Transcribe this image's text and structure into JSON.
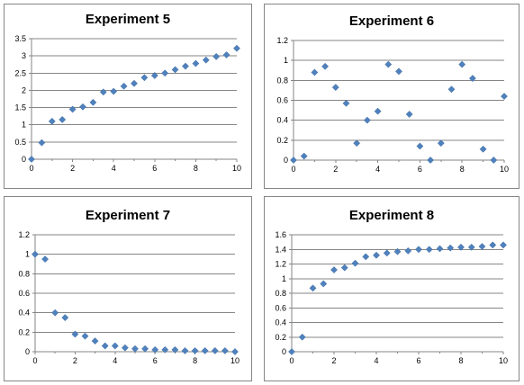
{
  "chart_data": [
    {
      "type": "scatter",
      "title": "Experiment 5",
      "marker": "diamond",
      "color": "#4f81bd",
      "grid": "horizontal",
      "xlim": [
        0,
        10
      ],
      "ylim": [
        0,
        3.5
      ],
      "x_ticks": [
        "0",
        "2",
        "4",
        "6",
        "8",
        "10"
      ],
      "y_ticks": [
        "0",
        "0.5",
        "1",
        "1.5",
        "2",
        "2.5",
        "3",
        "3.5"
      ],
      "points": [
        [
          0,
          0
        ],
        [
          0.5,
          0.48
        ],
        [
          1,
          1.1
        ],
        [
          1.5,
          1.15
        ],
        [
          2,
          1.45
        ],
        [
          2.5,
          1.52
        ],
        [
          3,
          1.65
        ],
        [
          3.5,
          1.95
        ],
        [
          4,
          1.97
        ],
        [
          4.5,
          2.12
        ],
        [
          5,
          2.2
        ],
        [
          5.5,
          2.37
        ],
        [
          6,
          2.43
        ],
        [
          6.5,
          2.5
        ],
        [
          7,
          2.6
        ],
        [
          7.5,
          2.7
        ],
        [
          8,
          2.78
        ],
        [
          8.5,
          2.88
        ],
        [
          9,
          2.98
        ],
        [
          9.5,
          3.03
        ],
        [
          10,
          3.22
        ]
      ]
    },
    {
      "type": "scatter",
      "title": "Experiment 6",
      "marker": "diamond",
      "color": "#4f81bd",
      "grid": "horizontal",
      "xlim": [
        0,
        10
      ],
      "ylim": [
        0,
        1.2
      ],
      "x_ticks": [
        "0",
        "2",
        "4",
        "6",
        "8",
        "10"
      ],
      "y_ticks": [
        "0",
        "0.2",
        "0.4",
        "0.6",
        "0.8",
        "1",
        "1.2"
      ],
      "points": [
        [
          0,
          0
        ],
        [
          0.5,
          0.04
        ],
        [
          1,
          0.88
        ],
        [
          1.5,
          0.94
        ],
        [
          2,
          0.73
        ],
        [
          2.5,
          0.57
        ],
        [
          3,
          0.17
        ],
        [
          3.5,
          0.4
        ],
        [
          4,
          0.49
        ],
        [
          4.5,
          0.96
        ],
        [
          5,
          0.89
        ],
        [
          5.5,
          0.46
        ],
        [
          6,
          0.14
        ],
        [
          6.5,
          0
        ],
        [
          7,
          0.17
        ],
        [
          7.5,
          0.71
        ],
        [
          8,
          0.96
        ],
        [
          8.5,
          0.82
        ],
        [
          9,
          0.11
        ],
        [
          9.5,
          0
        ],
        [
          10,
          0.64
        ]
      ]
    },
    {
      "type": "scatter",
      "title": "Experiment 7",
      "marker": "diamond",
      "color": "#4f81bd",
      "grid": "horizontal",
      "xlim": [
        0,
        10
      ],
      "ylim": [
        0,
        1.2
      ],
      "x_ticks": [
        "0",
        "2",
        "4",
        "6",
        "8",
        "10"
      ],
      "y_ticks": [
        "0",
        "0.2",
        "0.4",
        "0.6",
        "0.8",
        "1",
        "1.2"
      ],
      "points": [
        [
          0,
          1.0
        ],
        [
          0.5,
          0.95
        ],
        [
          1,
          0.4
        ],
        [
          1.5,
          0.35
        ],
        [
          2,
          0.18
        ],
        [
          2.5,
          0.16
        ],
        [
          3,
          0.11
        ],
        [
          3.5,
          0.06
        ],
        [
          4,
          0.06
        ],
        [
          4.5,
          0.04
        ],
        [
          5,
          0.03
        ],
        [
          5.5,
          0.03
        ],
        [
          6,
          0.02
        ],
        [
          6.5,
          0.02
        ],
        [
          7,
          0.02
        ],
        [
          7.5,
          0.01
        ],
        [
          8,
          0.01
        ],
        [
          8.5,
          0.01
        ],
        [
          9,
          0.01
        ],
        [
          9.5,
          0.01
        ],
        [
          10,
          0.0
        ]
      ]
    },
    {
      "type": "scatter",
      "title": "Experiment 8",
      "marker": "diamond",
      "color": "#4f81bd",
      "grid": "horizontal",
      "xlim": [
        0,
        10
      ],
      "ylim": [
        0,
        1.6
      ],
      "x_ticks": [
        "0",
        "2",
        "4",
        "6",
        "8",
        "10"
      ],
      "y_ticks": [
        "0",
        "0.2",
        "0.4",
        "0.6",
        "0.8",
        "1",
        "1.2",
        "1.4",
        "1.6"
      ],
      "points": [
        [
          0,
          0
        ],
        [
          0.5,
          0.2
        ],
        [
          1,
          0.87
        ],
        [
          1.5,
          0.93
        ],
        [
          2,
          1.12
        ],
        [
          2.5,
          1.15
        ],
        [
          3,
          1.21
        ],
        [
          3.5,
          1.3
        ],
        [
          4,
          1.32
        ],
        [
          4.5,
          1.35
        ],
        [
          5,
          1.37
        ],
        [
          5.5,
          1.38
        ],
        [
          6,
          1.4
        ],
        [
          6.5,
          1.4
        ],
        [
          7,
          1.41
        ],
        [
          7.5,
          1.42
        ],
        [
          8,
          1.43
        ],
        [
          8.5,
          1.43
        ],
        [
          9,
          1.44
        ],
        [
          9.5,
          1.46
        ],
        [
          10,
          1.46
        ]
      ]
    }
  ]
}
